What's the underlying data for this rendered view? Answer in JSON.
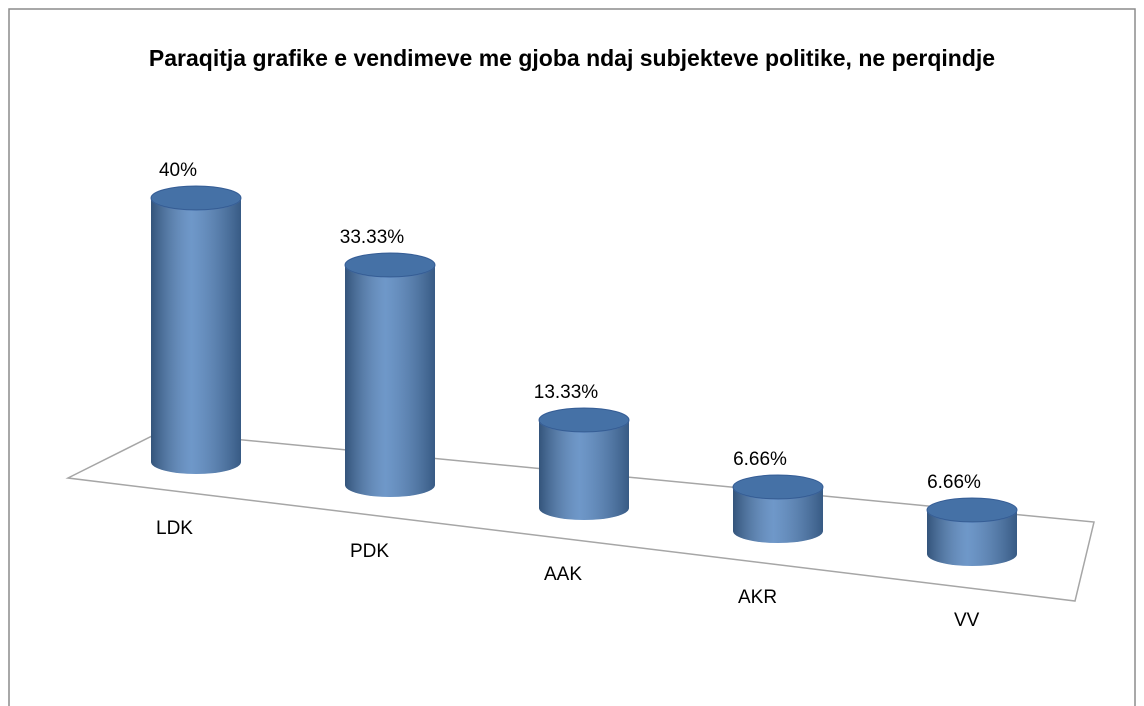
{
  "chart_data": {
    "type": "bar",
    "title": "Paraqitja grafike e vendimeve me gjoba ndaj subjekteve politike, ne perqindje",
    "categories": [
      "LDK",
      "PDK",
      "AAK",
      "AKR",
      "VV"
    ],
    "values": [
      40,
      33.33,
      13.33,
      6.66,
      6.66
    ],
    "value_labels": [
      "40%",
      "33.33%",
      "13.33%",
      "6.66%",
      "6.66%"
    ],
    "color": "#4f81bd"
  }
}
